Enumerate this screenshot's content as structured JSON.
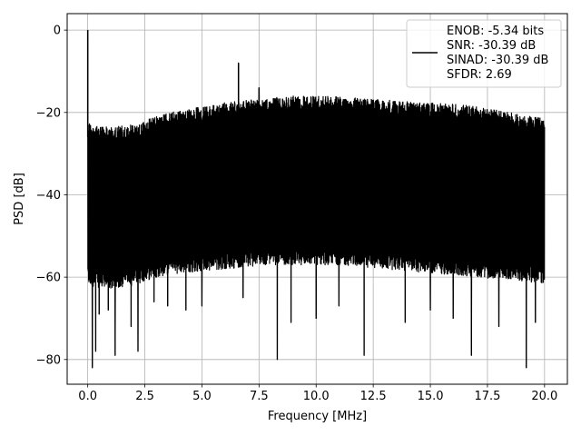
{
  "chart_data": {
    "type": "line",
    "title": "",
    "xlabel": "Frequency [MHz]",
    "ylabel": "PSD [dB]",
    "xlim": [
      -0.9,
      21.0
    ],
    "ylim": [
      -86,
      4
    ],
    "xticks": [
      0.0,
      2.5,
      5.0,
      7.5,
      10.0,
      12.5,
      15.0,
      17.5,
      20.0
    ],
    "xtick_labels": [
      "0.0",
      "2.5",
      "5.0",
      "7.5",
      "10.0",
      "12.5",
      "15.0",
      "17.5",
      "20.0"
    ],
    "yticks": [
      0,
      -20,
      -40,
      -60,
      -80
    ],
    "ytick_labels": [
      "0",
      "−20",
      "−40",
      "−60",
      "−80"
    ],
    "grid": true,
    "legend_position": "top-right",
    "legend_entries": [
      "ENOB: -5.34 bits",
      "SNR: -30.39 dB",
      "SINAD: -30.39 dB",
      "SFDR: 2.69"
    ],
    "line_color": "#000000",
    "x_range": [
      0.0,
      20.0
    ],
    "peaks": [
      {
        "x": 0.0,
        "y": 0.0
      },
      {
        "x": 6.6,
        "y": -8.0
      },
      {
        "x": 7.5,
        "y": -14.0
      }
    ],
    "upper_envelope": {
      "x": [
        0.0,
        0.2,
        1.0,
        2.0,
        3.0,
        4.0,
        5.0,
        6.0,
        7.0,
        8.0,
        9.0,
        10.0,
        11.0,
        12.0,
        13.0,
        14.0,
        15.0,
        16.0,
        17.0,
        18.0,
        19.0,
        20.0
      ],
      "y": [
        -22,
        -23,
        -23.5,
        -23,
        -21,
        -19.5,
        -18.5,
        -17.5,
        -17,
        -16.5,
        -16,
        -16,
        -16.2,
        -16.5,
        -17,
        -17.3,
        -17.7,
        -18,
        -18.5,
        -19.5,
        -20.5,
        -21.5
      ]
    },
    "lower_envelope": {
      "x": [
        0.0,
        1.0,
        2.0,
        3.0,
        4.0,
        5.0,
        6.0,
        7.0,
        8.0,
        9.0,
        10.0,
        11.0,
        12.0,
        13.0,
        14.0,
        15.0,
        16.0,
        17.0,
        18.0,
        19.0,
        20.0
      ],
      "y": [
        -62,
        -63,
        -62,
        -60,
        -59,
        -58.5,
        -58,
        -57.5,
        -57,
        -57,
        -57,
        -57,
        -57.5,
        -58,
        -58.5,
        -59,
        -59.5,
        -60,
        -60.5,
        -61,
        -61.5
      ]
    },
    "deep_dips": [
      {
        "x": 0.2,
        "y": -82
      },
      {
        "x": 0.35,
        "y": -78
      },
      {
        "x": 0.5,
        "y": -69
      },
      {
        "x": 0.9,
        "y": -68
      },
      {
        "x": 1.2,
        "y": -79
      },
      {
        "x": 1.9,
        "y": -72
      },
      {
        "x": 2.2,
        "y": -78
      },
      {
        "x": 2.9,
        "y": -66
      },
      {
        "x": 3.5,
        "y": -67
      },
      {
        "x": 4.3,
        "y": -68
      },
      {
        "x": 5.0,
        "y": -67
      },
      {
        "x": 6.8,
        "y": -65
      },
      {
        "x": 8.3,
        "y": -80
      },
      {
        "x": 8.9,
        "y": -71
      },
      {
        "x": 10.0,
        "y": -70
      },
      {
        "x": 11.0,
        "y": -67
      },
      {
        "x": 12.1,
        "y": -79
      },
      {
        "x": 13.9,
        "y": -71
      },
      {
        "x": 15.0,
        "y": -68
      },
      {
        "x": 16.0,
        "y": -70
      },
      {
        "x": 16.8,
        "y": -79
      },
      {
        "x": 18.0,
        "y": -72
      },
      {
        "x": 19.2,
        "y": -82
      },
      {
        "x": 19.6,
        "y": -71
      }
    ]
  }
}
